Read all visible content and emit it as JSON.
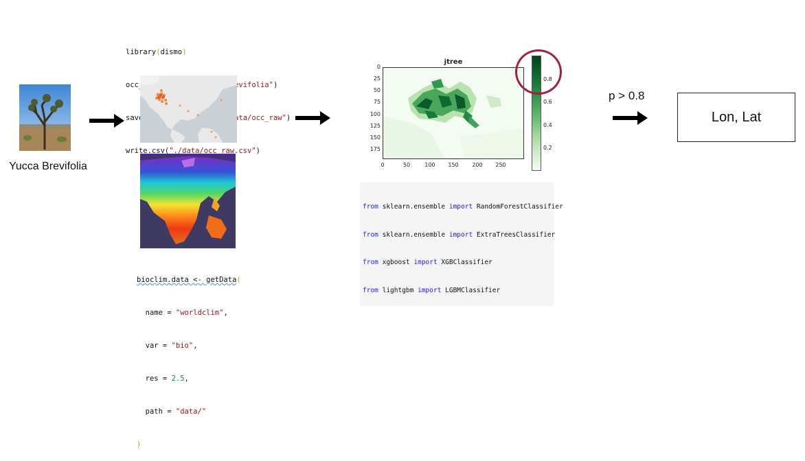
{
  "species_label": "Yucca Brevifolia",
  "r_code_top": {
    "line1": [
      "library",
      "(",
      "dismo",
      ")"
    ],
    "line2": [
      "occ_raw <- gbif(",
      "\"Yucca brevifolia\"",
      ")"
    ],
    "line3": [
      "save(occ_raw, file = ",
      "\"./data/occ_raw\"",
      ")"
    ],
    "line4": [
      "write.csv(",
      "\"./data/occ_raw.csv\"",
      ")"
    ]
  },
  "r_code_bottom": {
    "line1": [
      "bioclim.data <- getData",
      "("
    ],
    "line2": [
      "  name = ",
      "\"worldclim\"",
      ","
    ],
    "line3": [
      "  var = ",
      "\"bio\"",
      ","
    ],
    "line4": [
      "  res = ",
      "2.5",
      ","
    ],
    "line5": [
      "  path = ",
      "\"data/\""
    ],
    "line6": [
      ")"
    ]
  },
  "heatmap": {
    "title": "jtree",
    "x_ticks": [
      "0",
      "50",
      "100",
      "150",
      "200",
      "250"
    ],
    "y_ticks": [
      "0",
      "25",
      "50",
      "75",
      "100",
      "125",
      "150",
      "175"
    ],
    "colorbar_ticks": [
      "0.8",
      "0.6",
      "0.4",
      "0.2"
    ],
    "colormap": "Greens",
    "highlight_color": "#a3203a"
  },
  "python_code": [
    [
      "from",
      " sklearn.ensemble ",
      "import",
      " RandomForestClassifier"
    ],
    [
      "from",
      " sklearn.ensemble ",
      "import",
      " ExtraTreesClassifier"
    ],
    [
      "from",
      " xgboost ",
      "import",
      " XGBClassifier"
    ],
    [
      "from",
      " lightgbm ",
      "import",
      " LGBMClassifier"
    ]
  ],
  "threshold_label": "p > 0.8",
  "output_label": "Lon, Lat"
}
